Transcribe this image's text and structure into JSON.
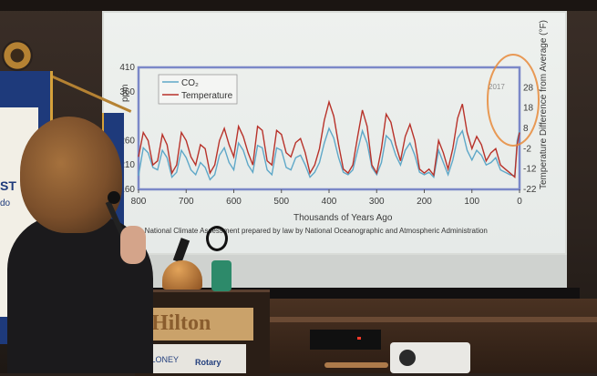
{
  "scene": {
    "podium_word": "Hilton",
    "banner_text": "ST",
    "banner_text2": "do",
    "sign_text": "MALONEY",
    "sign_rotary": "Rotary"
  },
  "chart_data": {
    "type": "line",
    "title": "",
    "xlabel": "Thousands of Years Ago",
    "ylabel": "ppm",
    "y2label": "Temperature Difference from Average (°F)",
    "x_ticks": [
      800,
      700,
      600,
      500,
      400,
      300,
      200,
      100,
      0
    ],
    "xlim": [
      800,
      0
    ],
    "y_ticks": [
      160,
      210,
      260,
      360,
      410
    ],
    "ylim": [
      160,
      410
    ],
    "y2_ticks": [
      -22,
      -12,
      -2,
      8,
      18,
      28
    ],
    "y2lim": [
      -22,
      38
    ],
    "legend": [
      "CO₂",
      "Temperature"
    ],
    "legend_position": "top-left",
    "annotation": "2017",
    "caption": "n National Climate Assessment prepared by law by National Oceanographic and Atmospheric Administration",
    "colors": {
      "co2": "#5fa8c8",
      "temperature": "#b8322a",
      "annotation_circle": "#e8893a",
      "axis_box": "#7b88c8"
    },
    "series": [
      {
        "name": "CO₂",
        "x": [
          800,
          790,
          780,
          770,
          760,
          750,
          740,
          730,
          720,
          710,
          700,
          690,
          680,
          670,
          660,
          650,
          640,
          630,
          620,
          610,
          600,
          590,
          580,
          570,
          560,
          550,
          540,
          530,
          520,
          510,
          500,
          490,
          480,
          470,
          460,
          450,
          440,
          430,
          420,
          410,
          400,
          390,
          380,
          370,
          360,
          350,
          340,
          330,
          320,
          310,
          300,
          290,
          280,
          270,
          260,
          250,
          240,
          230,
          220,
          210,
          200,
          190,
          180,
          170,
          160,
          150,
          140,
          130,
          120,
          110,
          100,
          90,
          80,
          70,
          60,
          50,
          40,
          30,
          20,
          10,
          5,
          0
        ],
        "values": [
          188,
          245,
          235,
          205,
          200,
          240,
          225,
          185,
          195,
          240,
          225,
          200,
          190,
          215,
          205,
          180,
          190,
          230,
          245,
          215,
          200,
          255,
          240,
          210,
          195,
          250,
          245,
          200,
          190,
          245,
          240,
          205,
          200,
          225,
          230,
          210,
          185,
          195,
          215,
          255,
          285,
          265,
          225,
          195,
          190,
          200,
          240,
          280,
          255,
          205,
          190,
          215,
          270,
          260,
          230,
          210,
          240,
          255,
          230,
          195,
          190,
          195,
          185,
          240,
          215,
          190,
          220,
          265,
          280,
          240,
          220,
          240,
          230,
          210,
          215,
          225,
          200,
          195,
          190,
          188,
          260,
          280
        ]
      },
      {
        "name": "Temperature",
        "x": [
          800,
          790,
          780,
          770,
          760,
          750,
          740,
          730,
          720,
          710,
          700,
          690,
          680,
          670,
          660,
          650,
          640,
          630,
          620,
          610,
          600,
          590,
          580,
          570,
          560,
          550,
          540,
          530,
          520,
          510,
          500,
          490,
          480,
          470,
          460,
          450,
          440,
          430,
          420,
          410,
          400,
          390,
          380,
          370,
          360,
          350,
          340,
          330,
          320,
          310,
          300,
          290,
          280,
          270,
          260,
          250,
          240,
          230,
          220,
          210,
          200,
          190,
          180,
          170,
          160,
          150,
          140,
          130,
          120,
          110,
          100,
          90,
          80,
          70,
          60,
          50,
          40,
          30,
          20,
          10,
          5,
          0
        ],
        "values": [
          -6,
          6,
          2,
          -10,
          -8,
          5,
          0,
          -14,
          -10,
          6,
          2,
          -6,
          -10,
          0,
          -2,
          -14,
          -10,
          2,
          8,
          0,
          -6,
          9,
          4,
          -4,
          -10,
          9,
          7,
          -8,
          -10,
          7,
          5,
          -4,
          -6,
          1,
          3,
          -4,
          -14,
          -10,
          -2,
          12,
          21,
          14,
          0,
          -12,
          -14,
          -10,
          4,
          17,
          9,
          -10,
          -14,
          -2,
          15,
          11,
          0,
          -8,
          4,
          10,
          2,
          -12,
          -14,
          -12,
          -15,
          2,
          -4,
          -12,
          -2,
          13,
          20,
          6,
          -2,
          4,
          0,
          -8,
          -4,
          -2,
          -10,
          -12,
          -14,
          -16,
          0,
          6
        ]
      }
    ]
  }
}
